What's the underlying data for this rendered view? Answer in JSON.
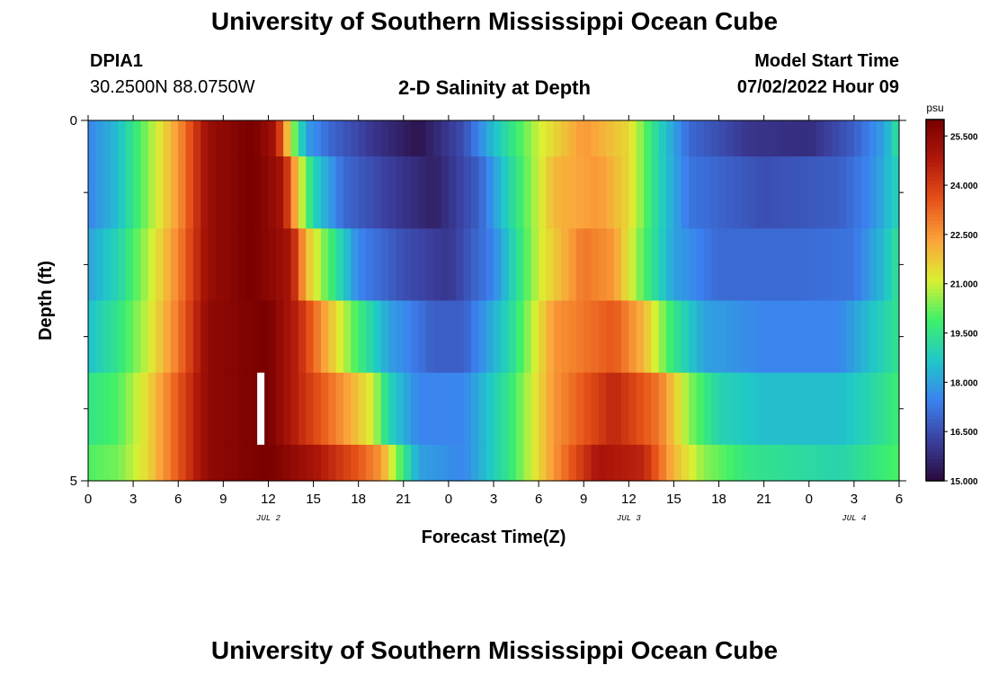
{
  "header": {
    "title": "University of Southern Mississippi Ocean Cube",
    "station": "DPIA1",
    "coords": "30.2500N  88.0750W",
    "subtitle": "2-D Salinity at Depth",
    "start_label": "Model Start Time",
    "start_value": "07/02/2022 Hour 09"
  },
  "footer": {
    "title": "University of Southern Mississippi Ocean Cube"
  },
  "colors": {
    "colormap": [
      "#2a0a3c",
      "#3b3f9e",
      "#3b82f0",
      "#20c8c8",
      "#3ef06a",
      "#dcf032",
      "#fba23b",
      "#e65218",
      "#b0180a",
      "#780000"
    ],
    "marker": "#ffffff"
  },
  "chart_data": {
    "type": "heatmap",
    "title": "2-D Salinity at Depth",
    "xlabel": "Forecast Time(Z)",
    "ylabel": "Depth (ft)",
    "colorbar_unit": "psu",
    "colorbar_ticks": [
      "25.500",
      "24.000",
      "22.500",
      "21.000",
      "19.500",
      "18.000",
      "16.500",
      "15.000"
    ],
    "zlim": [
      15.0,
      26.0
    ],
    "x_hours": [
      0,
      54
    ],
    "ylim": [
      0,
      5
    ],
    "x_tick_labels": [
      "0",
      "3",
      "6",
      "9",
      "12",
      "15",
      "18",
      "21",
      "0",
      "3",
      "6",
      "9",
      "12",
      "15",
      "18",
      "21",
      "0",
      "3",
      "6"
    ],
    "y_tick_labels": [
      "0",
      "5"
    ],
    "date_labels": [
      {
        "label": "JUL 2",
        "hour": 12
      },
      {
        "label": "JUL 3",
        "hour": 36
      },
      {
        "label": "JUL 4",
        "hour": 51
      }
    ],
    "current_time_marker_hour": 11.5,
    "depth_bands": [
      {
        "top": 0,
        "bottom": 0.5,
        "anchors": [
          [
            0,
            17.5
          ],
          [
            2,
            18.5
          ],
          [
            4,
            20.5
          ],
          [
            6,
            22.5
          ],
          [
            8,
            25.3
          ],
          [
            11,
            26
          ],
          [
            12.5,
            25
          ],
          [
            13.5,
            21
          ],
          [
            14.5,
            18
          ],
          [
            16,
            17
          ],
          [
            19,
            16
          ],
          [
            22,
            15.2
          ],
          [
            25,
            16.5
          ],
          [
            27,
            18.5
          ],
          [
            30,
            21
          ],
          [
            33,
            22.5
          ],
          [
            36,
            21.5
          ],
          [
            38,
            19
          ],
          [
            40,
            17
          ],
          [
            44,
            16
          ],
          [
            48,
            15.8
          ],
          [
            51,
            16.8
          ],
          [
            53,
            18
          ],
          [
            54,
            19.5
          ]
        ]
      },
      {
        "top": 0.5,
        "bottom": 1.5,
        "anchors": [
          [
            0,
            17.5
          ],
          [
            2,
            18.5
          ],
          [
            4,
            20.5
          ],
          [
            6,
            22.5
          ],
          [
            8,
            25.3
          ],
          [
            11,
            26
          ],
          [
            13,
            25
          ],
          [
            14,
            21.5
          ],
          [
            15,
            19
          ],
          [
            17,
            17
          ],
          [
            20,
            16.2
          ],
          [
            23,
            15.5
          ],
          [
            26,
            16.8
          ],
          [
            28,
            19
          ],
          [
            31,
            22
          ],
          [
            34,
            22.5
          ],
          [
            36,
            21.5
          ],
          [
            38,
            19
          ],
          [
            40,
            17.2
          ],
          [
            45,
            16.5
          ],
          [
            50,
            16.8
          ],
          [
            52,
            17.5
          ],
          [
            54,
            19
          ]
        ]
      },
      {
        "top": 1.5,
        "bottom": 2.5,
        "anchors": [
          [
            0,
            18
          ],
          [
            2,
            19
          ],
          [
            4,
            20.8
          ],
          [
            6,
            22.8
          ],
          [
            8,
            25.3
          ],
          [
            11,
            26
          ],
          [
            13.5,
            25
          ],
          [
            14.5,
            22
          ],
          [
            16,
            20
          ],
          [
            18,
            17.5
          ],
          [
            21,
            16.5
          ],
          [
            24,
            16
          ],
          [
            27,
            17.5
          ],
          [
            30,
            21
          ],
          [
            33,
            23
          ],
          [
            35,
            22.5
          ],
          [
            37,
            20
          ],
          [
            39,
            18
          ],
          [
            42,
            17
          ],
          [
            47,
            17
          ],
          [
            51,
            17.2
          ],
          [
            53,
            18.5
          ],
          [
            54,
            19.5
          ]
        ]
      },
      {
        "top": 2.5,
        "bottom": 3.5,
        "anchors": [
          [
            0,
            18.5
          ],
          [
            2,
            19.5
          ],
          [
            4,
            21
          ],
          [
            6,
            23
          ],
          [
            8,
            25.5
          ],
          [
            12,
            26
          ],
          [
            14,
            24.5
          ],
          [
            16,
            22
          ],
          [
            18,
            19.8
          ],
          [
            20,
            18
          ],
          [
            23,
            16.8
          ],
          [
            25,
            16.8
          ],
          [
            28,
            19
          ],
          [
            31,
            22.5
          ],
          [
            35,
            23.5
          ],
          [
            37,
            22
          ],
          [
            39,
            19.5
          ],
          [
            41,
            18
          ],
          [
            45,
            17.5
          ],
          [
            50,
            17.5
          ],
          [
            52,
            18.5
          ],
          [
            54,
            19.5
          ]
        ]
      },
      {
        "top": 3.5,
        "bottom": 4.5,
        "anchors": [
          [
            0,
            19.5
          ],
          [
            2,
            20
          ],
          [
            4,
            21.5
          ],
          [
            6,
            23.5
          ],
          [
            8,
            25.5
          ],
          [
            12,
            26
          ],
          [
            14,
            24.5
          ],
          [
            17,
            22.5
          ],
          [
            19,
            21
          ],
          [
            20,
            19
          ],
          [
            22,
            17.5
          ],
          [
            25,
            17.5
          ],
          [
            28,
            19.5
          ],
          [
            31,
            22.5
          ],
          [
            35,
            24.5
          ],
          [
            38,
            23
          ],
          [
            40,
            20.5
          ],
          [
            42,
            19
          ],
          [
            45,
            18.5
          ],
          [
            50,
            18.5
          ],
          [
            52,
            19
          ],
          [
            54,
            19.8
          ]
        ]
      },
      {
        "top": 4.5,
        "bottom": 5,
        "anchors": [
          [
            0,
            20
          ],
          [
            2,
            20.3
          ],
          [
            4,
            21.5
          ],
          [
            6,
            23.5
          ],
          [
            8,
            25.5
          ],
          [
            12,
            26
          ],
          [
            15,
            25
          ],
          [
            18,
            23.5
          ],
          [
            19.5,
            22.5
          ],
          [
            20.5,
            20.5
          ],
          [
            22,
            18
          ],
          [
            25,
            17.5
          ],
          [
            28,
            19.5
          ],
          [
            31,
            22.5
          ],
          [
            34,
            25
          ],
          [
            37,
            24.5
          ],
          [
            39,
            22
          ],
          [
            41,
            20.5
          ],
          [
            44,
            19.5
          ],
          [
            50,
            19
          ],
          [
            52,
            19.5
          ],
          [
            54,
            20
          ]
        ]
      }
    ]
  }
}
